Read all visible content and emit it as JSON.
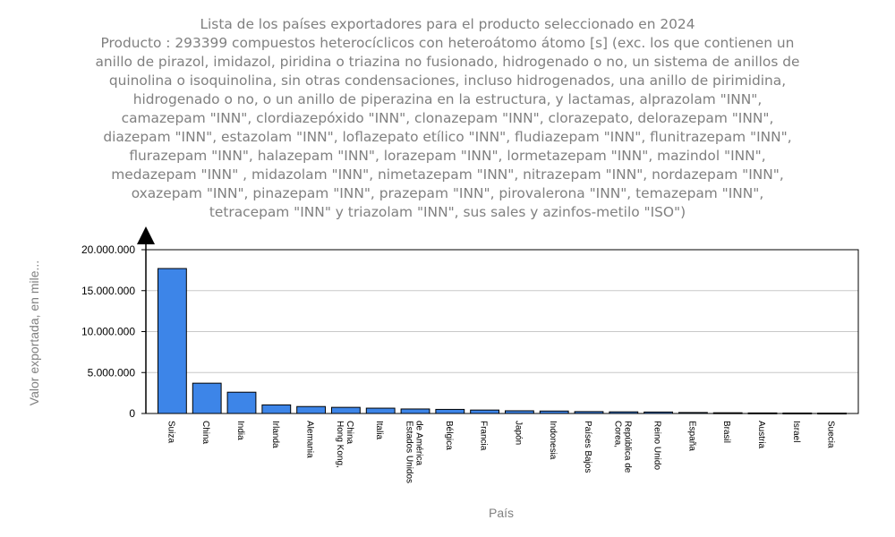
{
  "chart_data": {
    "type": "bar",
    "title_lines": [
      "Lista de los países exportadores para el producto seleccionado en 2024",
      "Producto : 293399 compuestos heterocíclicos con heteroátomo átomo [s] (exc. los que contienen un",
      "anillo de pirazol, imidazol, piridina o triazina no fusionado, hidrogenado o no, un sistema de anillos de",
      "quinolina o isoquinolina, sin otras condensaciones, incluso hidrogenados, una anillo de pirimidina,",
      "hidrogenado o no, o un anillo de piperazina en la estructura, y lactamas, alprazolam \"INN\",",
      "camazepam \"INN\", clordiazepóxido \"INN\", clonazepam \"INN\", clorazepato, delorazepam \"INN\",",
      "diazepam \"INN\", estazolam \"INN\", loflazepato etílico \"INN\", fludiazepam \"INN\", flunitrazepam \"INN\",",
      "flurazepam \"INN\", halazepam \"INN\", lorazepam \"INN\", lormetazepam \"INN\", mazindol \"INN\",",
      "medazepam \"INN\" , midazolam \"INN\", nimetazepam \"INN\", nitrazepam \"INN\", nordazepam \"INN\",",
      "oxazepam \"INN\", pinazepam \"INN\", prazepam \"INN\", pirovalerona \"INN\", temazepam \"INN\",",
      "tetracepam \"INN\" y triazolam \"INN\", sus sales y azinfos-metilo \"ISO\")"
    ],
    "xlabel": "País",
    "ylabel": "Valor exportada, en mile...",
    "ylim": [
      0,
      20000000
    ],
    "yticks": [
      0,
      5000000,
      10000000,
      15000000,
      20000000
    ],
    "ytick_labels": [
      "0",
      "5.000.000",
      "10.000.000",
      "15.000.000",
      "20.000.000"
    ],
    "grid": true,
    "bar_color": "#3d85e8",
    "categories": [
      [
        "Suiza"
      ],
      [
        "China"
      ],
      [
        "India"
      ],
      [
        "Irlanda"
      ],
      [
        "Alemania"
      ],
      [
        "Hong Kong,",
        "China"
      ],
      [
        "Italia"
      ],
      [
        "Estados Unidos",
        "de América"
      ],
      [
        "Bélgica"
      ],
      [
        "Francia"
      ],
      [
        "Japón"
      ],
      [
        "Indonesia"
      ],
      [
        "Países Bajos"
      ],
      [
        "Corea,",
        "República de"
      ],
      [
        "Reino Unido"
      ],
      [
        "España"
      ],
      [
        "Brasil"
      ],
      [
        "Austria"
      ],
      [
        "Israel"
      ],
      [
        "Suecia"
      ]
    ],
    "values": [
      17700000,
      3700000,
      2600000,
      1050000,
      850000,
      750000,
      650000,
      550000,
      500000,
      420000,
      330000,
      300000,
      230000,
      200000,
      180000,
      120000,
      90000,
      70000,
      60000,
      50000
    ]
  }
}
